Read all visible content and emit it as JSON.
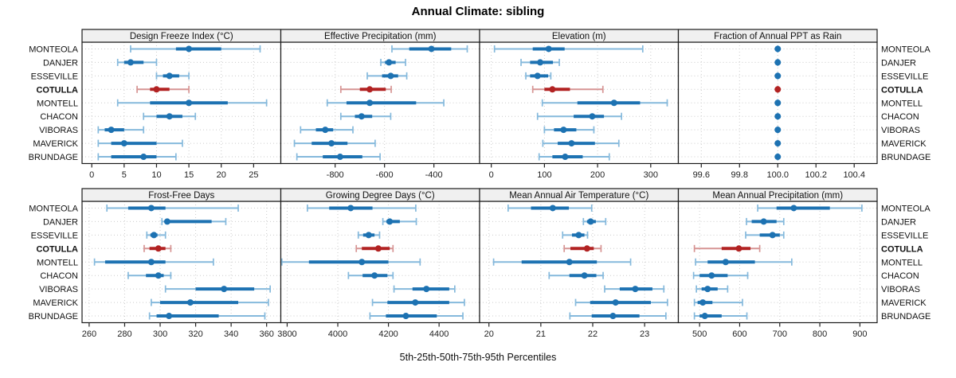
{
  "chart_data": {
    "type": "scatter",
    "subtype": "percentile-dotplot-trellis",
    "title": "Annual Climate: sibling",
    "xlabel": "5th-25th-50th-75th-95th Percentiles",
    "legend_position": "none",
    "grid": "dotted",
    "percentiles": [
      5,
      25,
      50,
      75,
      95
    ],
    "stations": [
      "MONTEOLA",
      "DANJER",
      "ESSEVILLE",
      "COTULLA",
      "MONTELL",
      "CHACON",
      "VIBORAS",
      "MAVERICK",
      "BRUNDAGE"
    ],
    "highlight_station": "COTULLA",
    "colors": {
      "main_blue": "#1d72b2",
      "light_blue": "#85b9dc",
      "main_red": "#b22222",
      "light_red": "#d69493",
      "strip_bg": "#f0f0f0",
      "grid_line": "#cccccc",
      "panel_border": "#1a1a1a"
    },
    "panels": [
      {
        "title": "Design Freeze Index (°C)",
        "row": 0,
        "col": 0,
        "xlim": [
          -1.5,
          29.2
        ],
        "ticks": [
          0,
          5,
          10,
          15,
          20,
          25
        ],
        "tick_labels": [
          "0",
          "5",
          "10",
          "15",
          "20",
          "25"
        ],
        "values": [
          [
            6,
            13,
            15,
            20,
            26
          ],
          [
            4,
            5,
            6,
            8,
            10
          ],
          [
            10,
            11,
            12,
            13.5,
            15
          ],
          [
            7,
            9,
            10,
            12,
            15
          ],
          [
            4,
            9,
            15,
            21,
            27
          ],
          [
            8,
            10,
            12,
            14,
            16
          ],
          [
            1,
            2,
            3,
            5,
            8
          ],
          [
            1,
            3,
            5,
            10,
            14
          ],
          [
            1,
            3,
            8,
            10,
            13
          ]
        ]
      },
      {
        "title": "Effective Precipitation (mm)",
        "row": 0,
        "col": 1,
        "xlim": [
          -1020,
          -215
        ],
        "ticks": [
          -800,
          -600,
          -400
        ],
        "tick_labels": [
          "-800",
          "-600",
          "-400"
        ],
        "values": [
          [
            -570,
            -500,
            -410,
            -330,
            -265
          ],
          [
            -615,
            -598,
            -582,
            -555,
            -515
          ],
          [
            -670,
            -610,
            -575,
            -545,
            -510
          ],
          [
            -777,
            -700,
            -660,
            -595,
            -573
          ],
          [
            -832,
            -754,
            -660,
            -472,
            -360
          ],
          [
            -777,
            -720,
            -693,
            -650,
            -575
          ],
          [
            -940,
            -878,
            -840,
            -808,
            -728
          ],
          [
            -965,
            -895,
            -815,
            -750,
            -638
          ],
          [
            -955,
            -850,
            -780,
            -690,
            -618
          ]
        ]
      },
      {
        "title": "Elevation (m)",
        "row": 0,
        "col": 2,
        "xlim": [
          -22,
          352
        ],
        "ticks": [
          0,
          100,
          200,
          300
        ],
        "tick_labels": [
          "0",
          "100",
          "200",
          "300"
        ],
        "values": [
          [
            6,
            78,
            108,
            138,
            285
          ],
          [
            56,
            73,
            92,
            116,
            128
          ],
          [
            65,
            73,
            87,
            107,
            112
          ],
          [
            78,
            100,
            115,
            148,
            210
          ],
          [
            96,
            162,
            231,
            280,
            331
          ],
          [
            87,
            155,
            190,
            212,
            245
          ],
          [
            100,
            118,
            136,
            160,
            193
          ],
          [
            97,
            125,
            151,
            195,
            240
          ],
          [
            90,
            115,
            139,
            172,
            222
          ]
        ]
      },
      {
        "title": "Fraction of Annual PPT as Rain",
        "row": 0,
        "col": 3,
        "xlim": [
          99.48,
          100.52
        ],
        "ticks": [
          99.6,
          99.8,
          100.0,
          100.2,
          100.4
        ],
        "tick_labels": [
          "99.6",
          "99.8",
          "100.0",
          "100.2",
          "100.4"
        ],
        "values": [
          [
            100,
            100,
            100,
            100,
            100
          ],
          [
            100,
            100,
            100,
            100,
            100
          ],
          [
            100,
            100,
            100,
            100,
            100
          ],
          [
            100,
            100,
            100,
            100,
            100
          ],
          [
            100,
            100,
            100,
            100,
            100
          ],
          [
            100,
            100,
            100,
            100,
            100
          ],
          [
            100,
            100,
            100,
            100,
            100
          ],
          [
            100,
            100,
            100,
            100,
            100
          ],
          [
            100,
            100,
            100,
            100,
            100
          ]
        ]
      },
      {
        "title": "Frost-Free Days",
        "row": 1,
        "col": 0,
        "xlim": [
          256,
          368
        ],
        "ticks": [
          260,
          280,
          300,
          320,
          340,
          360
        ],
        "tick_labels": [
          "260",
          "280",
          "300",
          "320",
          "340",
          "360"
        ],
        "values": [
          [
            270,
            282,
            295,
            303,
            344
          ],
          [
            301,
            302.5,
            304,
            329,
            337
          ],
          [
            292.5,
            294.5,
            296.5,
            298.5,
            303
          ],
          [
            291,
            294,
            299,
            303,
            306
          ],
          [
            263,
            269,
            295,
            303,
            330
          ],
          [
            282,
            292,
            299,
            302,
            306
          ],
          [
            303,
            320,
            336,
            353,
            362
          ],
          [
            295,
            300,
            317,
            344,
            361
          ],
          [
            294,
            298,
            305,
            333,
            359
          ]
        ]
      },
      {
        "title": "Growing Degree Days (°C)",
        "row": 1,
        "col": 1,
        "xlim": [
          3775,
          4560
        ],
        "ticks": [
          3800,
          4000,
          4200,
          4400
        ],
        "tick_labels": [
          "3800",
          "4000",
          "4200",
          "4400"
        ],
        "values": [
          [
            3880,
            3966,
            4051,
            4137,
            4308
          ],
          [
            4178,
            4192,
            4205,
            4245,
            4310
          ],
          [
            4081,
            4100,
            4122,
            4145,
            4165
          ],
          [
            4073,
            4095,
            4160,
            4205,
            4218
          ],
          [
            3779,
            3886,
            4095,
            4200,
            4325
          ],
          [
            4042,
            4098,
            4145,
            4196,
            4218
          ],
          [
            4222,
            4295,
            4350,
            4440,
            4462
          ],
          [
            4137,
            4196,
            4306,
            4440,
            4500
          ],
          [
            4127,
            4190,
            4269,
            4391,
            4494
          ]
        ]
      },
      {
        "title": "Mean Annual Air Temperature (°C)",
        "row": 1,
        "col": 2,
        "xlim": [
          19.82,
          23.65
        ],
        "ticks": [
          20,
          21,
          22,
          23
        ],
        "tick_labels": [
          "20",
          "21",
          "22",
          "23"
        ],
        "values": [
          [
            20.37,
            20.81,
            21.23,
            21.54,
            21.98
          ],
          [
            21.82,
            21.89,
            21.96,
            22.06,
            22.25
          ],
          [
            21.42,
            21.6,
            21.73,
            21.84,
            21.9
          ],
          [
            21.45,
            21.57,
            21.89,
            22.02,
            22.16
          ],
          [
            20.09,
            20.63,
            21.55,
            22.08,
            22.73
          ],
          [
            21.16,
            21.55,
            21.84,
            22.07,
            22.2
          ],
          [
            22.23,
            22.52,
            22.82,
            23.15,
            23.37
          ],
          [
            21.67,
            21.95,
            22.44,
            23.12,
            23.44
          ],
          [
            21.56,
            21.98,
            22.39,
            22.9,
            23.41
          ]
        ]
      },
      {
        "title": "Mean Annual Precipitation (mm)",
        "row": 1,
        "col": 3,
        "xlim": [
          447,
          943
        ],
        "ticks": [
          500,
          600,
          700,
          800,
          900
        ],
        "tick_labels": [
          "500",
          "600",
          "700",
          "800",
          "900"
        ],
        "values": [
          [
            645,
            692,
            735,
            825,
            905
          ],
          [
            617,
            630,
            660,
            692,
            710
          ],
          [
            615,
            650,
            682,
            700,
            710
          ],
          [
            487,
            555,
            598,
            627,
            650
          ],
          [
            490,
            520,
            565,
            638,
            730
          ],
          [
            485,
            500,
            530,
            570,
            620
          ],
          [
            492,
            505,
            520,
            545,
            570
          ],
          [
            487,
            495,
            508,
            532,
            607
          ],
          [
            487,
            500,
            513,
            555,
            618
          ]
        ]
      }
    ]
  }
}
